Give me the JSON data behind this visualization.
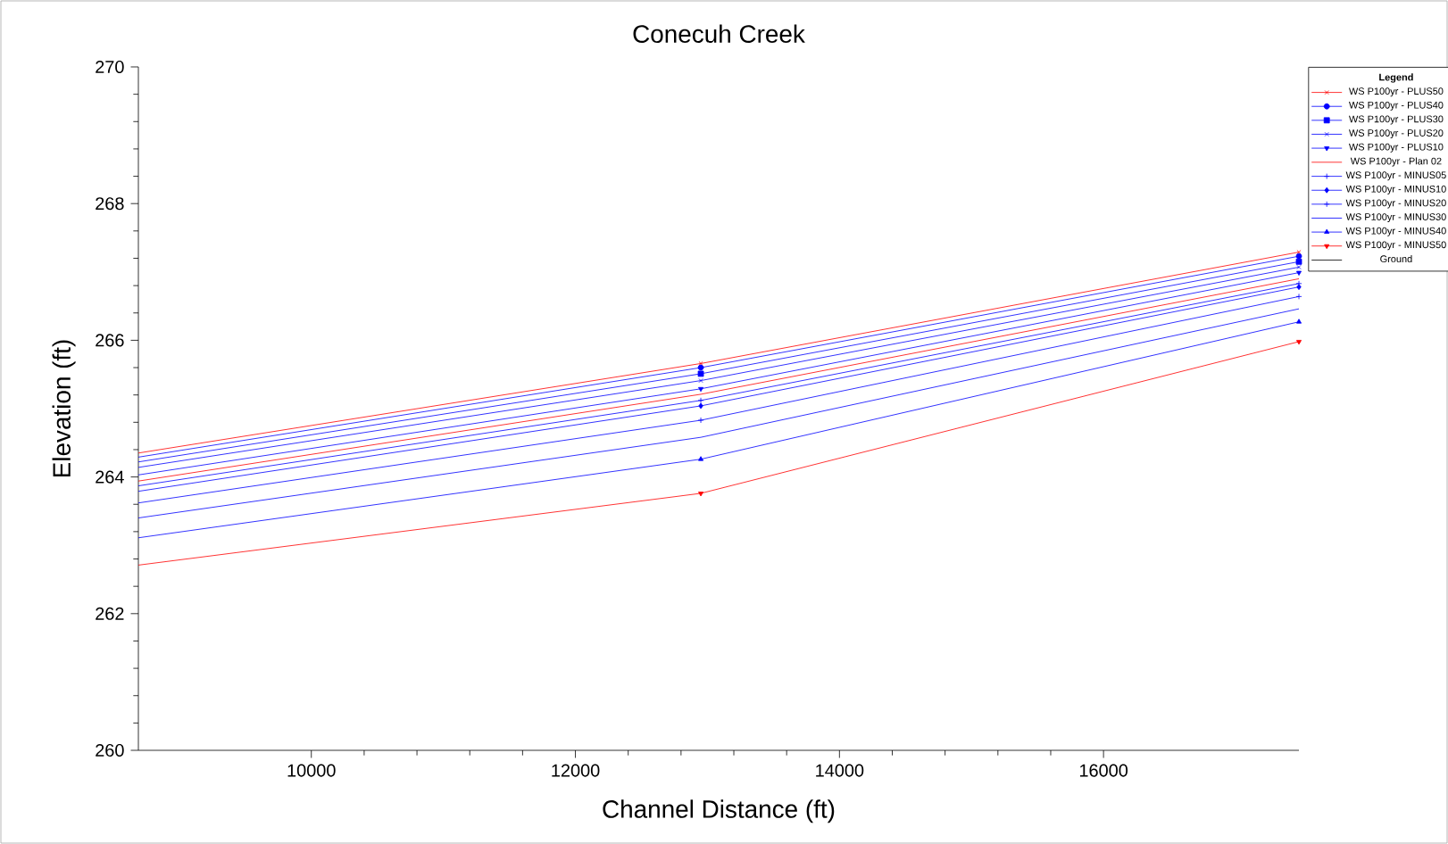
{
  "chart_data": {
    "type": "line",
    "title": "Conecuh Creek",
    "xlabel": "Channel Distance (ft)",
    "ylabel": "Elevation  (ft)",
    "legend_title": "Legend",
    "legend": "right",
    "x": [
      8690,
      12950,
      17480
    ],
    "xlim": [
      8690,
      17480
    ],
    "xticks": [
      10000,
      12000,
      14000,
      16000
    ],
    "ylim": [
      260,
      270
    ],
    "yticks": [
      260,
      262,
      264,
      266,
      268,
      270
    ],
    "series": [
      {
        "name": "WS  P100yr - PLUS50",
        "color": "#ff0000",
        "marker": "cross",
        "values": [
          264.35,
          265.66,
          267.29
        ]
      },
      {
        "name": "WS  P100yr - PLUS40",
        "color": "#0000ff",
        "marker": "circle",
        "values": [
          264.29,
          265.6,
          267.23
        ]
      },
      {
        "name": "WS  P100yr - PLUS30",
        "color": "#0000ff",
        "marker": "square",
        "values": [
          264.22,
          265.51,
          267.15
        ]
      },
      {
        "name": "WS  P100yr - PLUS20",
        "color": "#0000ff",
        "marker": "cross",
        "values": [
          264.14,
          265.41,
          267.07
        ]
      },
      {
        "name": "WS  P100yr - PLUS10",
        "color": "#0000ff",
        "marker": "triangle_down",
        "values": [
          264.03,
          265.29,
          266.99
        ]
      },
      {
        "name": "WS  P100yr - Plan 02",
        "color": "#ff0000",
        "marker": "none",
        "values": [
          263.94,
          265.21,
          266.9
        ]
      },
      {
        "name": "WS  P100yr - MINUS05",
        "color": "#0000ff",
        "marker": "plus",
        "values": [
          263.87,
          265.12,
          266.83
        ]
      },
      {
        "name": "WS  P100yr - MINUS10",
        "color": "#0000ff",
        "marker": "diamond",
        "values": [
          263.79,
          265.04,
          266.78
        ]
      },
      {
        "name": "WS  P100yr - MINUS20",
        "color": "#0000ff",
        "marker": "plus",
        "values": [
          263.62,
          264.83,
          266.64
        ]
      },
      {
        "name": "WS  P100yr - MINUS30",
        "color": "#0000ff",
        "marker": "none",
        "values": [
          263.4,
          264.58,
          266.46
        ]
      },
      {
        "name": "WS  P100yr - MINUS40",
        "color": "#0000ff",
        "marker": "triangle",
        "values": [
          263.11,
          264.26,
          266.27
        ]
      },
      {
        "name": "WS  P100yr - MINUS50",
        "color": "#ff0000",
        "marker": "triangle_down",
        "values": [
          262.71,
          263.76,
          265.98
        ]
      },
      {
        "name": "Ground",
        "color": "#000000",
        "values": [
          null,
          null,
          null
        ]
      }
    ]
  }
}
